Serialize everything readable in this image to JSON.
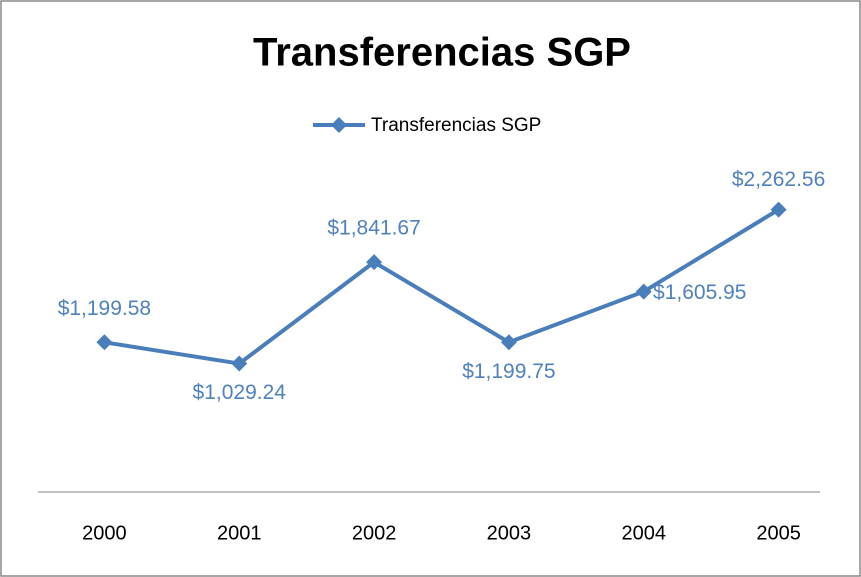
{
  "chart_data": {
    "type": "line",
    "title": "Transferencias SGP",
    "categories": [
      "2000",
      "2001",
      "2002",
      "2003",
      "2004",
      "2005"
    ],
    "series": [
      {
        "name": "Transferencias SGP",
        "color": "#4a7ebb",
        "values": [
          1199.58,
          1029.24,
          1841.67,
          1199.75,
          1605.95,
          2262.56
        ],
        "value_labels": [
          "$1,199.58",
          "$1,029.24",
          "$1,841.67",
          "$1,199.75",
          "$1,605.95",
          "$2,262.56"
        ]
      }
    ],
    "ylim": [
      0,
      2500
    ],
    "legend": "top"
  }
}
